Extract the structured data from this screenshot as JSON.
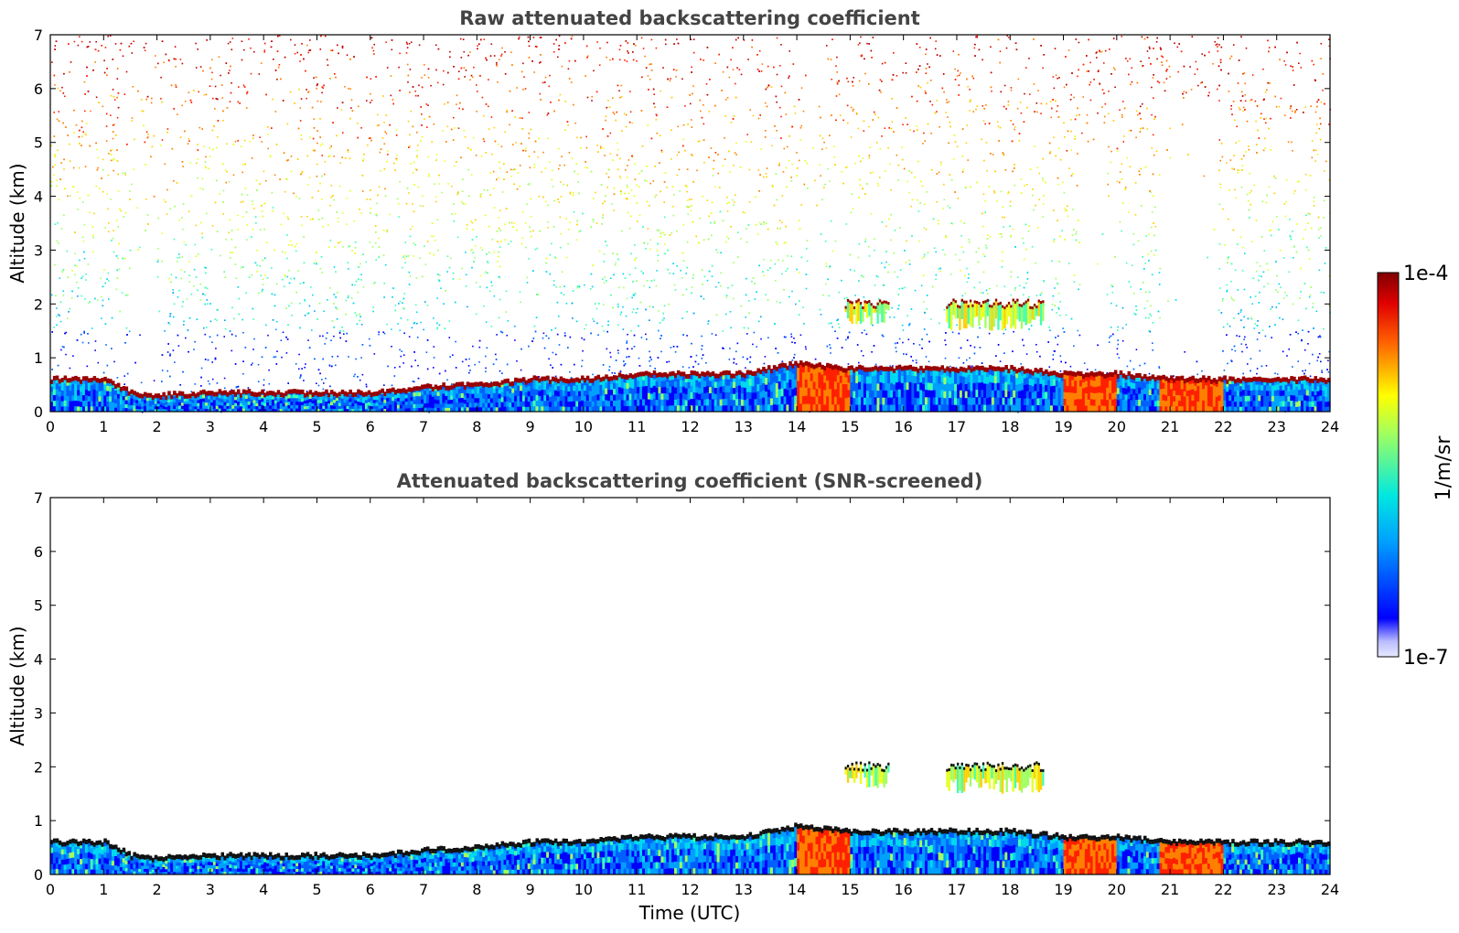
{
  "chart_data": [
    {
      "type": "heatmap",
      "title": "Raw attenuated backscattering coefficient",
      "xlabel": "",
      "ylabel": "Altitude (km)",
      "xlim": [
        0,
        24
      ],
      "ylim": [
        0,
        7
      ],
      "x_ticks": [
        0,
        1,
        2,
        3,
        4,
        5,
        6,
        7,
        8,
        9,
        10,
        11,
        12,
        13,
        14,
        15,
        16,
        17,
        18,
        19,
        20,
        21,
        22,
        23,
        24
      ],
      "y_ticks": [
        0,
        1,
        2,
        3,
        4,
        5,
        6,
        7
      ],
      "noise_screened": false,
      "boundary_layer_top_km": [
        [
          0,
          0.6
        ],
        [
          1,
          0.6
        ],
        [
          1.5,
          0.35
        ],
        [
          2,
          0.3
        ],
        [
          3,
          0.35
        ],
        [
          4,
          0.35
        ],
        [
          5,
          0.35
        ],
        [
          6,
          0.35
        ],
        [
          7,
          0.45
        ],
        [
          8,
          0.5
        ],
        [
          9,
          0.6
        ],
        [
          10,
          0.6
        ],
        [
          11,
          0.7
        ],
        [
          12,
          0.7
        ],
        [
          13,
          0.7
        ],
        [
          14,
          0.9
        ],
        [
          15,
          0.8
        ],
        [
          16,
          0.8
        ],
        [
          17,
          0.8
        ],
        [
          18,
          0.8
        ],
        [
          19,
          0.7
        ],
        [
          20,
          0.7
        ],
        [
          21,
          0.6
        ],
        [
          22,
          0.6
        ],
        [
          23,
          0.6
        ],
        [
          24,
          0.6
        ]
      ],
      "cloud_layers": [
        {
          "x": [
            14.9,
            15.7
          ],
          "y": [
            1.6,
            2.1
          ]
        },
        {
          "x": [
            16.8,
            18.6
          ],
          "y": [
            1.5,
            2.1
          ]
        }
      ],
      "high_signal_periods": [
        [
          14.0,
          15.0
        ],
        [
          19.0,
          20.0
        ],
        [
          20.8,
          22.0
        ]
      ]
    },
    {
      "type": "heatmap",
      "title": "Attenuated backscattering coefficient (SNR-screened)",
      "xlabel": "Time (UTC)",
      "ylabel": "Altitude (km)",
      "xlim": [
        0,
        24
      ],
      "ylim": [
        0,
        7
      ],
      "x_ticks": [
        0,
        1,
        2,
        3,
        4,
        5,
        6,
        7,
        8,
        9,
        10,
        11,
        12,
        13,
        14,
        15,
        16,
        17,
        18,
        19,
        20,
        21,
        22,
        23,
        24
      ],
      "y_ticks": [
        0,
        1,
        2,
        3,
        4,
        5,
        6,
        7
      ],
      "noise_screened": true,
      "boundary_layer_top_km": [
        [
          0,
          0.6
        ],
        [
          1,
          0.6
        ],
        [
          1.5,
          0.35
        ],
        [
          2,
          0.3
        ],
        [
          3,
          0.35
        ],
        [
          4,
          0.35
        ],
        [
          5,
          0.35
        ],
        [
          6,
          0.35
        ],
        [
          7,
          0.45
        ],
        [
          8,
          0.5
        ],
        [
          9,
          0.6
        ],
        [
          10,
          0.6
        ],
        [
          11,
          0.7
        ],
        [
          12,
          0.7
        ],
        [
          13,
          0.7
        ],
        [
          14,
          0.9
        ],
        [
          15,
          0.8
        ],
        [
          16,
          0.8
        ],
        [
          17,
          0.8
        ],
        [
          18,
          0.8
        ],
        [
          19,
          0.7
        ],
        [
          20,
          0.7
        ],
        [
          21,
          0.6
        ],
        [
          22,
          0.6
        ],
        [
          23,
          0.6
        ],
        [
          24,
          0.6
        ]
      ],
      "cloud_layers": [
        {
          "x": [
            14.9,
            15.7
          ],
          "y": [
            1.6,
            2.1
          ]
        },
        {
          "x": [
            16.8,
            18.6
          ],
          "y": [
            1.5,
            2.1
          ]
        }
      ],
      "high_signal_periods": [
        [
          14.0,
          15.0
        ],
        [
          19.0,
          20.0
        ],
        [
          20.8,
          22.0
        ]
      ]
    }
  ],
  "colorbar": {
    "max_label": "1e-4",
    "min_label": "1e-7",
    "unit_label": "1/m/sr",
    "scale": "log",
    "colormap": "jet"
  }
}
